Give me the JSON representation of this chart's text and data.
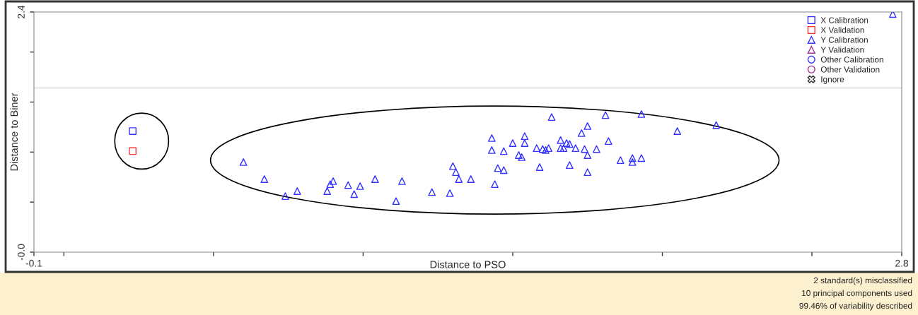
{
  "chart_data": {
    "type": "scatter",
    "xlabel": "Distance to PSO",
    "ylabel": "Distance to Biner",
    "xlim": [
      -0.1,
      2.8
    ],
    "ylim": [
      0,
      2.4
    ],
    "xticks": [
      {
        "value": -0.1,
        "label": "-0.1"
      },
      {
        "value": 0,
        "label": null
      },
      {
        "value": 0.5,
        "label": null
      },
      {
        "value": 1.0,
        "label": null
      },
      {
        "value": 1.5,
        "label": null
      },
      {
        "value": 2.0,
        "label": null
      },
      {
        "value": 2.5,
        "label": null
      },
      2.8
    ],
    "yticks": [
      {
        "value": 0,
        "label": "-0.0"
      },
      {
        "value": 0.5,
        "label": null
      },
      {
        "value": 1.0,
        "label": null
      },
      {
        "value": 1.5,
        "label": null
      },
      {
        "value": 2.0,
        "label": null
      },
      2.4
    ],
    "grid": false,
    "legend": "top right",
    "ref_lines": [
      {
        "axis": "y",
        "value": 1.64,
        "color": "#d0d0d0"
      }
    ],
    "series": [
      {
        "name": "X Calibration",
        "color": "#3333ff",
        "marker": "square",
        "x": [
          0.23
        ],
        "values": [
          1.21
        ]
      },
      {
        "name": "X Validation",
        "color": "#ff3333",
        "marker": "square",
        "x": [
          0.23
        ],
        "values": [
          1.01
        ]
      },
      {
        "name": "Y Calibration",
        "color": "#3333ff",
        "marker": "triangle",
        "x": [
          0.6,
          0.67,
          0.74,
          0.78,
          0.88,
          0.9,
          0.89,
          0.95,
          0.97,
          0.99,
          1.04,
          1.11,
          1.13,
          1.23,
          1.29,
          1.3,
          1.31,
          1.32,
          1.36,
          1.43,
          1.43,
          1.44,
          1.45,
          1.47,
          1.47,
          1.5,
          1.52,
          1.53,
          1.54,
          1.54,
          1.58,
          1.59,
          1.6,
          1.61,
          1.62,
          1.63,
          1.66,
          1.66,
          1.67,
          1.68,
          1.69,
          1.69,
          1.71,
          1.73,
          1.74,
          1.75,
          1.75,
          1.75,
          1.78,
          1.81,
          1.82,
          1.86,
          1.9,
          1.9,
          1.93,
          1.93,
          2.05,
          2.18,
          2.77
        ],
        "values": [
          0.9,
          0.73,
          0.56,
          0.61,
          0.61,
          0.71,
          0.68,
          0.67,
          0.58,
          0.66,
          0.73,
          0.51,
          0.71,
          0.6,
          0.59,
          0.86,
          0.8,
          0.73,
          0.73,
          1.14,
          1.02,
          0.68,
          0.84,
          1.01,
          0.82,
          1.09,
          0.97,
          0.95,
          1.09,
          1.16,
          1.04,
          0.85,
          1.03,
          1.02,
          1.04,
          1.35,
          1.04,
          1.12,
          1.04,
          1.09,
          1.08,
          0.87,
          1.04,
          1.19,
          1.03,
          1.26,
          0.97,
          0.8,
          1.03,
          1.37,
          1.11,
          0.92,
          0.9,
          0.94,
          1.38,
          0.94,
          1.21,
          1.27,
          2.38
        ]
      },
      {
        "name": "Y Validation",
        "color": "#a03090",
        "marker": "triangle"
      },
      {
        "name": "Other Calibration",
        "color": "#3333ff",
        "marker": "circle"
      },
      {
        "name": "Other Validation",
        "color": "#a03090",
        "marker": "circle"
      },
      {
        "name": "Ignore",
        "color": "#333333",
        "marker": "cross"
      }
    ],
    "annotations": [
      "2 standard(s) misclassified",
      "10 principal components used",
      "99.46% of variability described"
    ]
  }
}
